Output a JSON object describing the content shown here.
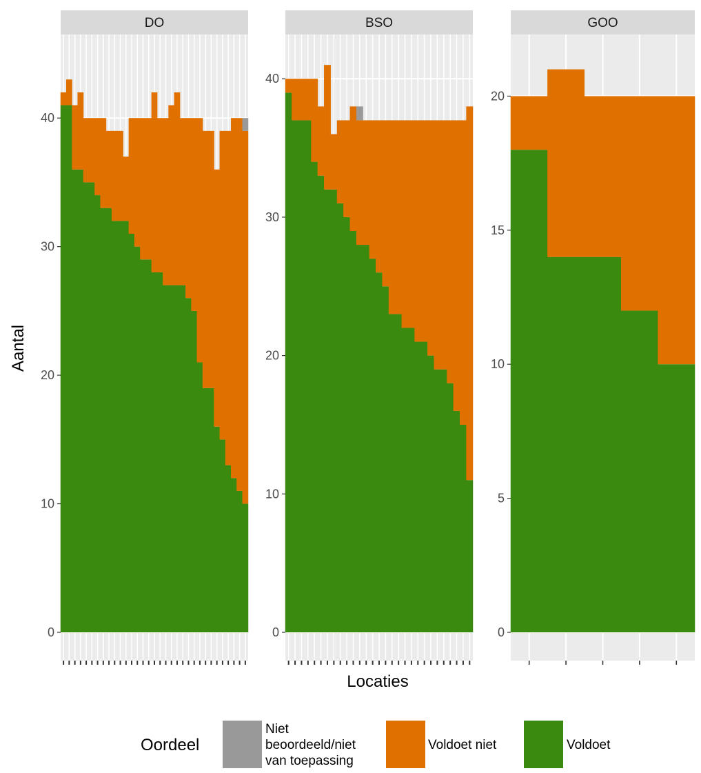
{
  "chart_data": {
    "type": "bar",
    "stacked": true,
    "xlabel": "Locaties",
    "ylabel": "Aantal",
    "legend": {
      "title": "Oordeel",
      "position": "bottom",
      "items": [
        {
          "key": "niet",
          "label_lines": [
            "Niet",
            "beoordeeld/niet",
            "van toepassing"
          ],
          "color": "#999999"
        },
        {
          "key": "voldoet_niet",
          "label_lines": [
            "Voldoet niet"
          ],
          "color": "#e07000"
        },
        {
          "key": "voldoet",
          "label_lines": [
            "Voldoet"
          ],
          "color": "#3a8a10"
        }
      ]
    },
    "grid": true,
    "panels": [
      {
        "title": "DO",
        "ylim": [
          0,
          46.5
        ],
        "yticks": [
          0,
          10,
          20,
          30,
          40
        ],
        "series": [
          {
            "name": "Voldoet",
            "values": [
              41,
              41,
              36,
              36,
              35,
              35,
              34,
              33,
              33,
              32,
              32,
              32,
              31,
              30,
              29,
              29,
              28,
              28,
              27,
              27,
              27,
              27,
              26,
              25,
              21,
              19,
              19,
              16,
              15,
              13,
              12,
              11,
              10
            ]
          },
          {
            "name": "Voldoet niet",
            "values": [
              1,
              2,
              5,
              6,
              5,
              5,
              6,
              7,
              6,
              7,
              7,
              5,
              9,
              10,
              11,
              11,
              14,
              12,
              13,
              14,
              15,
              13,
              14,
              15,
              19,
              20,
              20,
              20,
              24,
              26,
              28,
              29,
              29
            ]
          },
          {
            "name": "Niet beoordeeld/niet van toepassing",
            "values": [
              0,
              0,
              0,
              0,
              0,
              0,
              0,
              0,
              0,
              0,
              0,
              0,
              0,
              0,
              0,
              0,
              0,
              0,
              0,
              0,
              0,
              0,
              0,
              0,
              0,
              0,
              0,
              0,
              0,
              0,
              0,
              0,
              1
            ]
          }
        ]
      },
      {
        "title": "BSO",
        "ylim": [
          0,
          43.2
        ],
        "yticks": [
          0,
          10,
          20,
          30,
          40
        ],
        "series": [
          {
            "name": "Voldoet",
            "values": [
              39,
              37,
              37,
              37,
              34,
              33,
              32,
              32,
              31,
              30,
              29,
              28,
              28,
              27,
              26,
              25,
              23,
              23,
              22,
              22,
              21,
              21,
              20,
              19,
              19,
              18,
              16,
              15,
              11
            ]
          },
          {
            "name": "Voldoet niet",
            "values": [
              1,
              3,
              3,
              3,
              6,
              5,
              9,
              4,
              6,
              7,
              9,
              9,
              9,
              10,
              11,
              12,
              14,
              14,
              15,
              15,
              16,
              16,
              17,
              18,
              18,
              19,
              21,
              22,
              27
            ]
          },
          {
            "name": "Niet beoordeeld/niet van toepassing",
            "values": [
              0,
              0,
              0,
              0,
              0,
              0,
              0,
              0,
              0,
              0,
              0,
              1,
              0,
              0,
              0,
              0,
              0,
              0,
              0,
              0,
              0,
              0,
              0,
              0,
              0,
              0,
              0,
              0,
              0
            ]
          }
        ]
      },
      {
        "title": "GOO",
        "ylim": [
          0,
          22.3
        ],
        "yticks": [
          0,
          5,
          10,
          15,
          20
        ],
        "series": [
          {
            "name": "Voldoet",
            "values": [
              18,
              14,
              14,
              12,
              10
            ]
          },
          {
            "name": "Voldoet niet",
            "values": [
              2,
              7,
              6,
              8,
              10
            ]
          },
          {
            "name": "Niet beoordeeld/niet van toepassing",
            "values": [
              0,
              0,
              0,
              0,
              0
            ]
          }
        ]
      }
    ]
  }
}
